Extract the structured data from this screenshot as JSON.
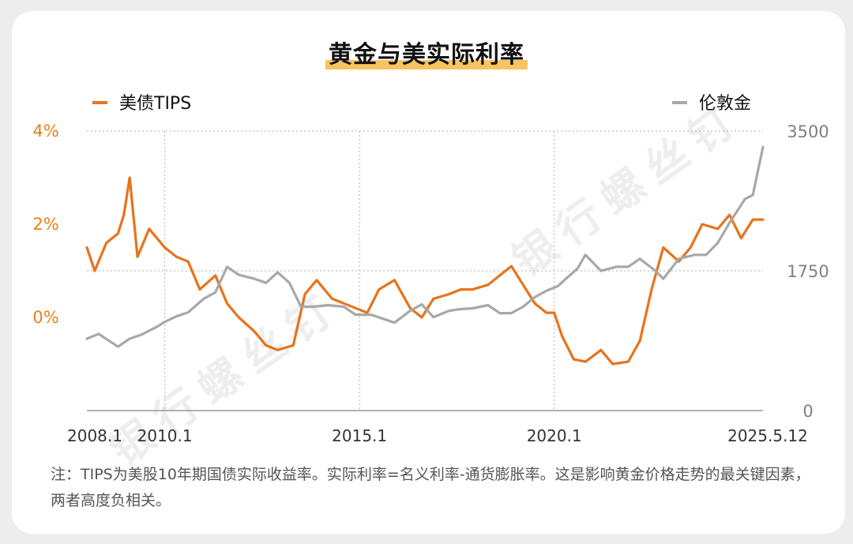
{
  "title": "黄金与美实际利率",
  "colors": {
    "tips": "#e8731a",
    "gold": "#a8a8a8",
    "left_axis": "#e8801c",
    "right_axis": "#808080",
    "grid": "#bdbdbd",
    "title_highlight": "#f6c463"
  },
  "watermark": "银行螺丝钉",
  "note": "注：TIPS为美股10年期国债实际收益率。实际利率=名义利率-通货膨胀率。这是影响黄金价格走势的最关键因素，两者高度负相关。",
  "chart_data": {
    "type": "line",
    "title": "黄金与美实际利率",
    "xlabel": "",
    "x_tick_labels": [
      "2008.1",
      "2010.1",
      "2015.1",
      "2020.1",
      "2025.5.12"
    ],
    "x_range": [
      "2008.1",
      "2025.5.12"
    ],
    "grid": true,
    "legend": [
      {
        "name": "美债TIPS",
        "position": "top-left",
        "color": "#e8731a"
      },
      {
        "name": "伦敦金",
        "position": "top-right",
        "color": "#a8a8a8"
      }
    ],
    "left_axis": {
      "series": "美债TIPS",
      "unit": "%",
      "tick_labels": [
        "4%",
        "2%",
        "0%"
      ],
      "range": [
        -2,
        4
      ]
    },
    "right_axis": {
      "series": "伦敦金",
      "tick_labels": [
        "3500",
        "1750",
        "0"
      ],
      "range": [
        0,
        3500
      ]
    },
    "series": [
      {
        "name": "美债TIPS",
        "axis": "left",
        "x": [
          2008.0,
          2008.2,
          2008.5,
          2008.8,
          2008.95,
          2009.1,
          2009.3,
          2009.6,
          2010.0,
          2010.3,
          2010.6,
          2010.9,
          2011.3,
          2011.6,
          2011.9,
          2012.3,
          2012.6,
          2012.9,
          2013.3,
          2013.6,
          2013.9,
          2014.3,
          2014.6,
          2014.9,
          2015.2,
          2015.5,
          2015.9,
          2016.3,
          2016.6,
          2016.9,
          2017.3,
          2017.6,
          2017.9,
          2018.3,
          2018.6,
          2018.9,
          2019.2,
          2019.5,
          2019.8,
          2020.0,
          2020.2,
          2020.5,
          2020.8,
          2021.2,
          2021.5,
          2021.9,
          2022.2,
          2022.5,
          2022.8,
          2023.2,
          2023.5,
          2023.8,
          2024.2,
          2024.5,
          2024.8,
          2025.1,
          2025.36
        ],
        "values": [
          1.5,
          1.0,
          1.6,
          1.8,
          2.2,
          3.0,
          1.3,
          1.9,
          1.5,
          1.3,
          1.2,
          0.6,
          0.9,
          0.3,
          0.0,
          -0.3,
          -0.6,
          -0.7,
          -0.6,
          0.5,
          0.8,
          0.4,
          0.3,
          0.2,
          0.1,
          0.6,
          0.8,
          0.2,
          0.0,
          0.4,
          0.5,
          0.6,
          0.6,
          0.7,
          0.9,
          1.1,
          0.7,
          0.3,
          0.1,
          0.1,
          -0.4,
          -0.9,
          -0.95,
          -0.7,
          -1.0,
          -0.95,
          -0.5,
          0.6,
          1.5,
          1.2,
          1.5,
          2.0,
          1.9,
          2.2,
          1.7,
          2.1,
          2.1
        ]
      },
      {
        "name": "伦敦金",
        "axis": "right",
        "x": [
          2008.0,
          2008.3,
          2008.8,
          2009.1,
          2009.4,
          2009.8,
          2010.0,
          2010.3,
          2010.6,
          2011.0,
          2011.3,
          2011.6,
          2011.9,
          2012.3,
          2012.6,
          2012.9,
          2013.2,
          2013.5,
          2013.8,
          2014.2,
          2014.6,
          2014.9,
          2015.3,
          2015.9,
          2016.3,
          2016.6,
          2016.9,
          2017.3,
          2017.6,
          2017.9,
          2018.3,
          2018.6,
          2018.9,
          2019.2,
          2019.5,
          2019.8,
          2020.1,
          2020.3,
          2020.6,
          2020.8,
          2021.2,
          2021.6,
          2021.9,
          2022.2,
          2022.6,
          2022.8,
          2023.2,
          2023.6,
          2023.9,
          2024.2,
          2024.5,
          2024.9,
          2025.1,
          2025.36
        ],
        "values": [
          900,
          960,
          800,
          900,
          950,
          1050,
          1110,
          1180,
          1230,
          1400,
          1480,
          1800,
          1700,
          1650,
          1600,
          1730,
          1600,
          1300,
          1300,
          1320,
          1300,
          1200,
          1200,
          1100,
          1250,
          1330,
          1170,
          1250,
          1270,
          1280,
          1320,
          1220,
          1220,
          1300,
          1420,
          1500,
          1560,
          1650,
          1780,
          1950,
          1750,
          1800,
          1800,
          1900,
          1750,
          1650,
          1900,
          1950,
          1950,
          2100,
          2350,
          2650,
          2700,
          3300
        ]
      }
    ]
  }
}
